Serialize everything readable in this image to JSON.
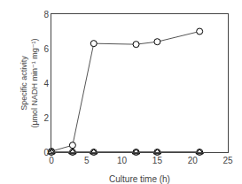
{
  "chart_data": {
    "type": "line",
    "xlabel": "Culture time (h)",
    "ylabel": "Specific activity\n(μmol NADH min⁻¹ mg⁻¹)",
    "x": [
      0,
      3,
      6,
      12,
      15,
      21
    ],
    "series": [
      {
        "color": "#555555",
        "marker": "circle-open",
        "values": [
          0.05,
          0.4,
          6.3,
          6.25,
          6.4,
          7.0
        ]
      },
      {
        "color": "#555555",
        "marker": "circle-open",
        "values": [
          0.0,
          0.0,
          0.0,
          0.0,
          0.0,
          0.0
        ]
      },
      {
        "color": "#555555",
        "marker": "triangle-up",
        "values": [
          0.0,
          0.0,
          0.0,
          0.0,
          0.0,
          0.0
        ]
      },
      {
        "color": "#555555",
        "marker": "triangle-up-open",
        "values": [
          0.0,
          0.0,
          0.0,
          0.0,
          0.0,
          0.0
        ]
      }
    ],
    "xlim": [
      0,
      25
    ],
    "ylim": [
      0,
      8
    ],
    "xticks": [
      0,
      5,
      10,
      15,
      20,
      25
    ],
    "yticks": [
      0,
      2,
      4,
      6,
      8
    ],
    "grid": false
  }
}
